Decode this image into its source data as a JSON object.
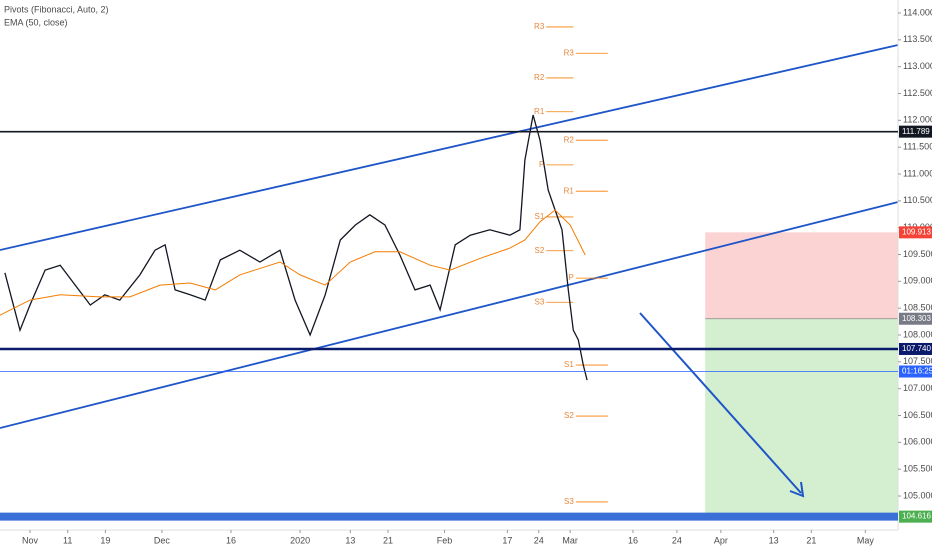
{
  "chart_data": {
    "type": "line",
    "indicators": [
      "Pivots (Fibonacci, Auto, 2)",
      "EMA (50, close)"
    ],
    "xlim": [
      -4.78,
      138.2
    ],
    "ylim": [
      104.367,
      114.242
    ],
    "xticks": [
      {
        "value": 0,
        "label": "Nov"
      },
      {
        "value": 6,
        "label": "11"
      },
      {
        "value": 12,
        "label": "19"
      },
      {
        "value": 21,
        "label": "Dec"
      },
      {
        "value": 32,
        "label": "16"
      },
      {
        "value": 43,
        "label": "2020"
      },
      {
        "value": 51,
        "label": "13"
      },
      {
        "value": 57,
        "label": "21"
      },
      {
        "value": 66,
        "label": "Feb"
      },
      {
        "value": 76,
        "label": "17"
      },
      {
        "value": 81,
        "label": "24"
      },
      {
        "value": 86,
        "label": "Mar"
      },
      {
        "value": 96,
        "label": "16"
      },
      {
        "value": 103,
        "label": "24"
      },
      {
        "value": 110,
        "label": "Apr"
      },
      {
        "value": 118.4,
        "label": "13"
      },
      {
        "value": 124.4,
        "label": "21"
      },
      {
        "value": 133,
        "label": "May"
      }
    ],
    "yticks": [
      {
        "value": 105,
        "label": "105.000"
      },
      {
        "value": 105.5,
        "label": "105.500"
      },
      {
        "value": 106,
        "label": "106.000"
      },
      {
        "value": 106.5,
        "label": "106.500"
      },
      {
        "value": 107,
        "label": "107.000"
      },
      {
        "value": 107.5,
        "label": "107.500"
      },
      {
        "value": 108,
        "label": "108.000"
      },
      {
        "value": 108.5,
        "label": "108.500"
      },
      {
        "value": 109,
        "label": "109.000"
      },
      {
        "value": 109.5,
        "label": "109.500"
      },
      {
        "value": 110,
        "label": "110.000"
      },
      {
        "value": 110.5,
        "label": "110.500"
      },
      {
        "value": 111,
        "label": "111.000"
      },
      {
        "value": 111.5,
        "label": "111.500"
      },
      {
        "value": 112,
        "label": "112.000"
      },
      {
        "value": 112.5,
        "label": "112.500"
      },
      {
        "value": 113,
        "label": "113.000"
      },
      {
        "value": 113.5,
        "label": "113.500"
      },
      {
        "value": 114,
        "label": "114.000"
      }
    ],
    "grid": false,
    "series": [
      {
        "color": "#131722",
        "x": [
          -4.0,
          -1.6,
          0,
          2.4,
          4.8,
          7.2,
          9.6,
          11.9,
          14.3,
          17.5,
          19.9,
          21.5,
          23.1,
          25.5,
          27.9,
          30.3,
          33.4,
          36.6,
          39.8,
          42.2,
          44.6,
          47.0,
          49.4,
          51.8,
          54.1,
          56.5,
          58.9,
          61.3,
          63.7,
          65.3,
          67.7,
          70.1,
          73.2,
          76.4,
          78.0,
          78.8,
          80.1,
          81.2,
          82.5,
          83.6,
          84.7,
          85.7,
          86.5,
          87.3,
          88.1,
          88.7
        ],
        "values": [
          109.16,
          108.09,
          108.56,
          109.21,
          109.3,
          108.93,
          108.56,
          108.75,
          108.65,
          109.12,
          109.58,
          109.68,
          108.84,
          108.75,
          108.65,
          109.4,
          109.58,
          109.36,
          109.58,
          108.65,
          108.0,
          108.75,
          109.77,
          110.05,
          110.24,
          110.05,
          109.49,
          108.84,
          108.93,
          108.47,
          109.68,
          109.86,
          109.96,
          109.86,
          109.96,
          111.26,
          112.1,
          111.63,
          110.7,
          110.33,
          109.96,
          108.84,
          108.09,
          107.91,
          107.44,
          107.16
        ]
      },
      {
        "color": "#f57c00",
        "x": [
          -4.8,
          0,
          4.8,
          11.1,
          15.9,
          20.7,
          25.5,
          29.5,
          33.4,
          39.8,
          43.0,
          47.0,
          51.0,
          54.9,
          58.9,
          63.7,
          66.9,
          71.7,
          76.4,
          78.8,
          81.2,
          83.6,
          86.0,
          88.4
        ],
        "values": [
          108.37,
          108.65,
          108.75,
          108.71,
          108.71,
          108.93,
          108.97,
          108.84,
          109.12,
          109.36,
          109.12,
          108.93,
          109.36,
          109.55,
          109.55,
          109.3,
          109.21,
          109.43,
          109.62,
          109.77,
          110.11,
          110.33,
          110.05,
          109.49
        ]
      }
    ],
    "pivots": [
      {
        "label": "R3",
        "value": 113.74,
        "x": [
          82.2,
          86.5
        ]
      },
      {
        "label": "R2",
        "value": 112.79,
        "x": [
          82.2,
          86.5
        ]
      },
      {
        "label": "R1",
        "value": 112.16,
        "x": [
          82.2,
          86.5
        ]
      },
      {
        "label": "P",
        "value": 111.17,
        "x": [
          82.2,
          86.5
        ]
      },
      {
        "label": "S1",
        "value": 110.2,
        "x": [
          82.2,
          86.5
        ]
      },
      {
        "label": "S2",
        "value": 109.57,
        "x": [
          82.2,
          86.5
        ]
      },
      {
        "label": "S3",
        "value": 108.61,
        "x": [
          82.2,
          86.5
        ]
      },
      {
        "label": "R3",
        "value": 113.25,
        "x": [
          86.9,
          92.0
        ]
      },
      {
        "label": "R2",
        "value": 111.63,
        "x": [
          86.9,
          92.0
        ]
      },
      {
        "label": "R1",
        "value": 110.68,
        "x": [
          86.9,
          92.0
        ]
      },
      {
        "label": "P",
        "value": 109.06,
        "x": [
          86.9,
          92.0
        ]
      },
      {
        "label": "S1",
        "value": 107.44,
        "x": [
          86.9,
          92.0
        ]
      },
      {
        "label": "S2",
        "value": 106.49,
        "x": [
          86.9,
          92.0
        ]
      },
      {
        "label": "S3",
        "value": 104.89,
        "x": [
          86.9,
          92.0
        ]
      }
    ],
    "levels": [
      {
        "value": 111.789,
        "color": "#131722"
      },
      {
        "value": 107.74,
        "label": "107.740",
        "color": "#0c1a6b"
      },
      {
        "value": 107.32,
        "label": "01:16:25",
        "color": "#2962ff"
      }
    ],
    "position": {
      "x_start": 107.5,
      "stop": 109.913,
      "entry": 108.303,
      "target": 104.616
    }
  }
}
